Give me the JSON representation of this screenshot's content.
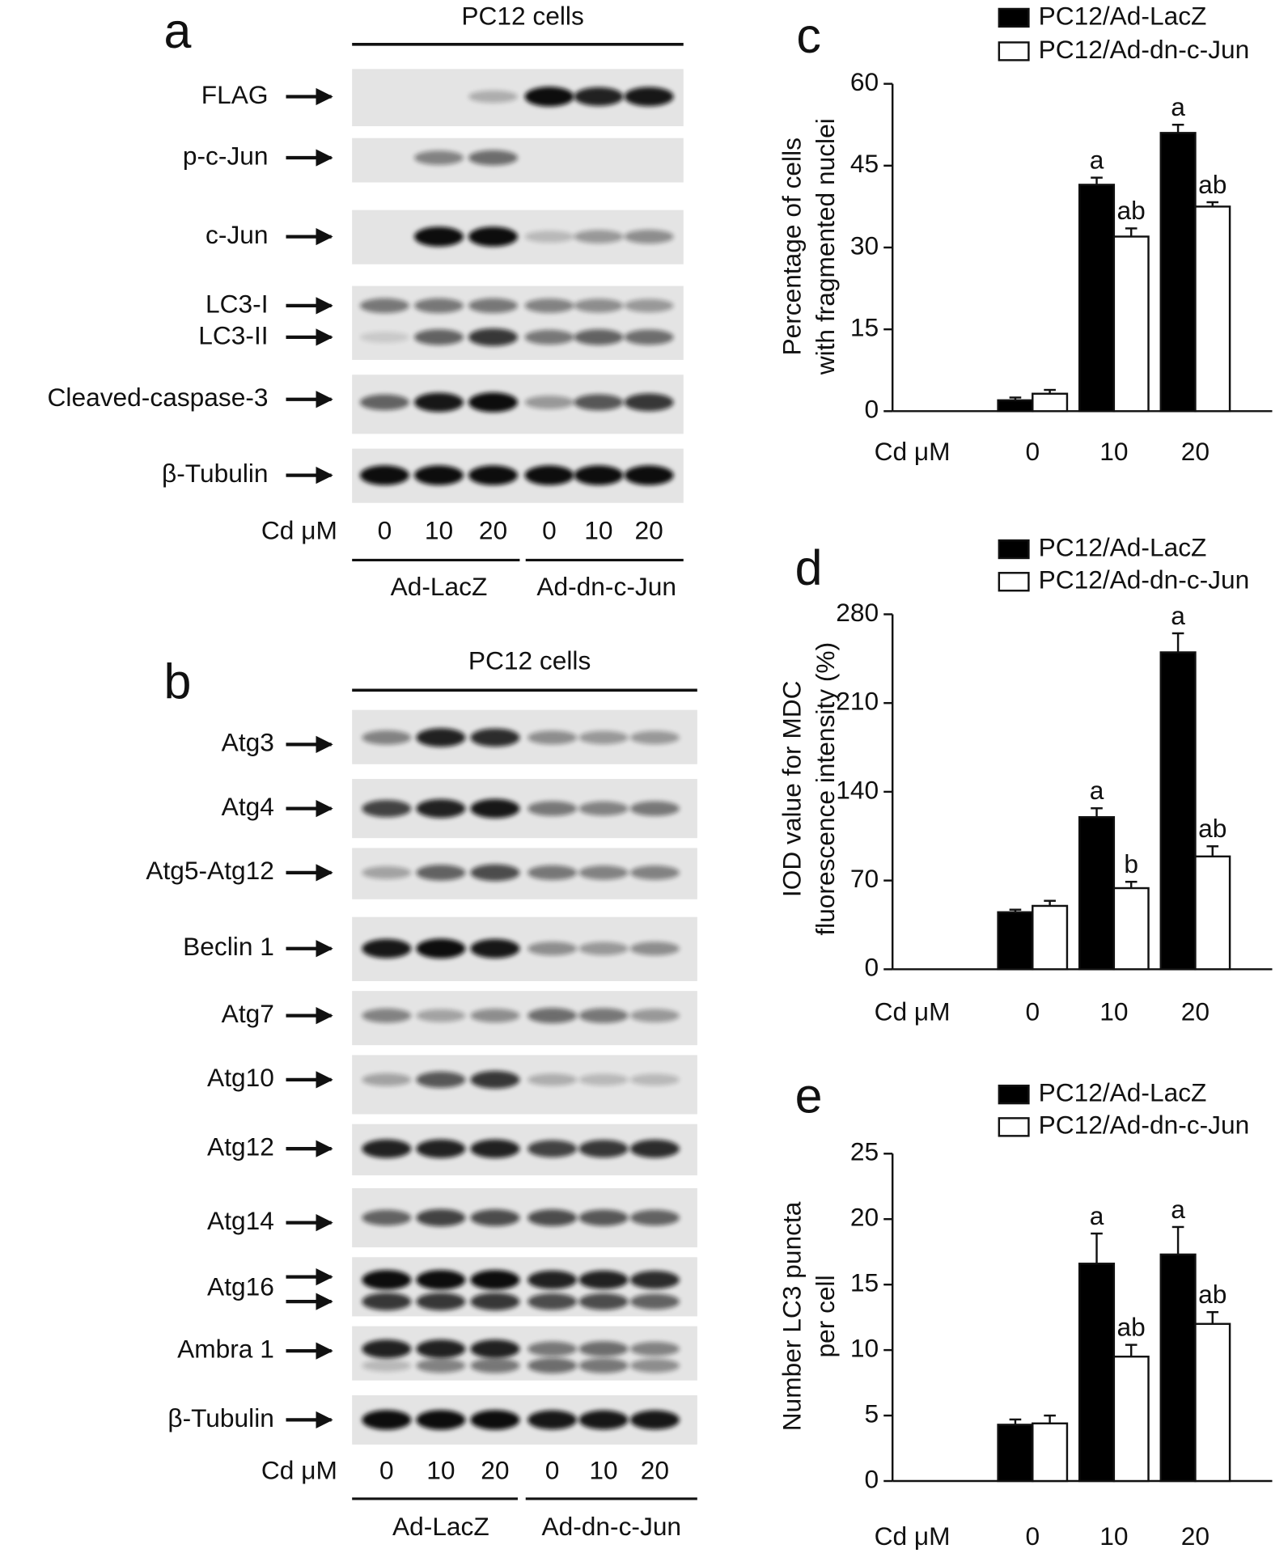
{
  "blots": [
    {
      "panel": "a",
      "title": "PC12 cells",
      "rows": [
        "FLAG",
        "p-c-Jun",
        "c-Jun",
        "LC3-I",
        "LC3-II",
        "Cleaved-caspase-3",
        "β-Tubulin"
      ],
      "dose_label": "Cd μM",
      "doses": [
        "0",
        "10",
        "20",
        "0",
        "10",
        "20"
      ],
      "groups": [
        "Ad-LacZ",
        "Ad-dn-c-Jun"
      ]
    },
    {
      "panel": "b",
      "title": "PC12 cells",
      "rows": [
        "Atg3",
        "Atg4",
        "Atg5-Atg12",
        "Beclin 1",
        "Atg7",
        "Atg10",
        "Atg12",
        "Atg14",
        "Atg16",
        "Ambra 1",
        "β-Tubulin"
      ],
      "dose_label": "Cd μM",
      "doses": [
        "0",
        "10",
        "20",
        "0",
        "10",
        "20"
      ],
      "groups": [
        "Ad-LacZ",
        "Ad-dn-c-Jun"
      ]
    }
  ],
  "chart_data": [
    {
      "type": "bar",
      "panel": "c",
      "y_label": [
        "Percentage of cells",
        "with fragmented nuclei"
      ],
      "x_label": "Cd μM",
      "categories": [
        "0",
        "10",
        "20"
      ],
      "ylim": [
        0,
        60
      ],
      "yticks": [
        0,
        15,
        30,
        45,
        60
      ],
      "series": [
        {
          "name": "PC12/Ad-LacZ",
          "color": "#000000",
          "values": [
            2,
            41.5,
            51
          ],
          "error": [
            0.5,
            1.3,
            1.5
          ],
          "sig_labels": [
            null,
            "a",
            "a"
          ]
        },
        {
          "name": "PC12/Ad-dn-c-Jun",
          "color": "#ffffff",
          "values": [
            3.2,
            32,
            37.5
          ],
          "error": [
            0.7,
            1.5,
            0.8
          ],
          "sig_labels": [
            null,
            "ab",
            "ab"
          ]
        }
      ]
    },
    {
      "type": "bar",
      "panel": "d",
      "y_label": [
        "IOD value for MDC",
        "fluorescence intensity (%)"
      ],
      "x_label": "Cd μM",
      "categories": [
        "0",
        "10",
        "20"
      ],
      "ylim": [
        0,
        280
      ],
      "yticks": [
        0,
        70,
        140,
        210,
        280
      ],
      "series": [
        {
          "name": "PC12/Ad-LacZ",
          "color": "#000000",
          "values": [
            45,
            120,
            250
          ],
          "error": [
            2,
            7,
            15
          ],
          "sig_labels": [
            null,
            "a",
            "a"
          ]
        },
        {
          "name": "PC12/Ad-dn-c-Jun",
          "color": "#ffffff",
          "values": [
            50,
            64,
            89
          ],
          "error": [
            4,
            5,
            8
          ],
          "sig_labels": [
            null,
            "b",
            "ab"
          ]
        }
      ]
    },
    {
      "type": "bar",
      "panel": "e",
      "y_label": [
        "Number LC3 puncta",
        "per cell"
      ],
      "x_label": "Cd μM",
      "categories": [
        "0",
        "10",
        "20"
      ],
      "ylim": [
        0,
        25
      ],
      "yticks": [
        0,
        5,
        10,
        15,
        20,
        25
      ],
      "series": [
        {
          "name": "PC12/Ad-LacZ",
          "color": "#000000",
          "values": [
            4.3,
            16.6,
            17.3
          ],
          "error": [
            0.4,
            2.3,
            2.1
          ],
          "sig_labels": [
            null,
            "a",
            "a"
          ]
        },
        {
          "name": "PC12/Ad-dn-c-Jun",
          "color": "#ffffff",
          "values": [
            4.4,
            9.5,
            12
          ],
          "error": [
            0.6,
            0.9,
            0.9
          ],
          "sig_labels": [
            null,
            "ab",
            "ab"
          ]
        }
      ]
    }
  ]
}
